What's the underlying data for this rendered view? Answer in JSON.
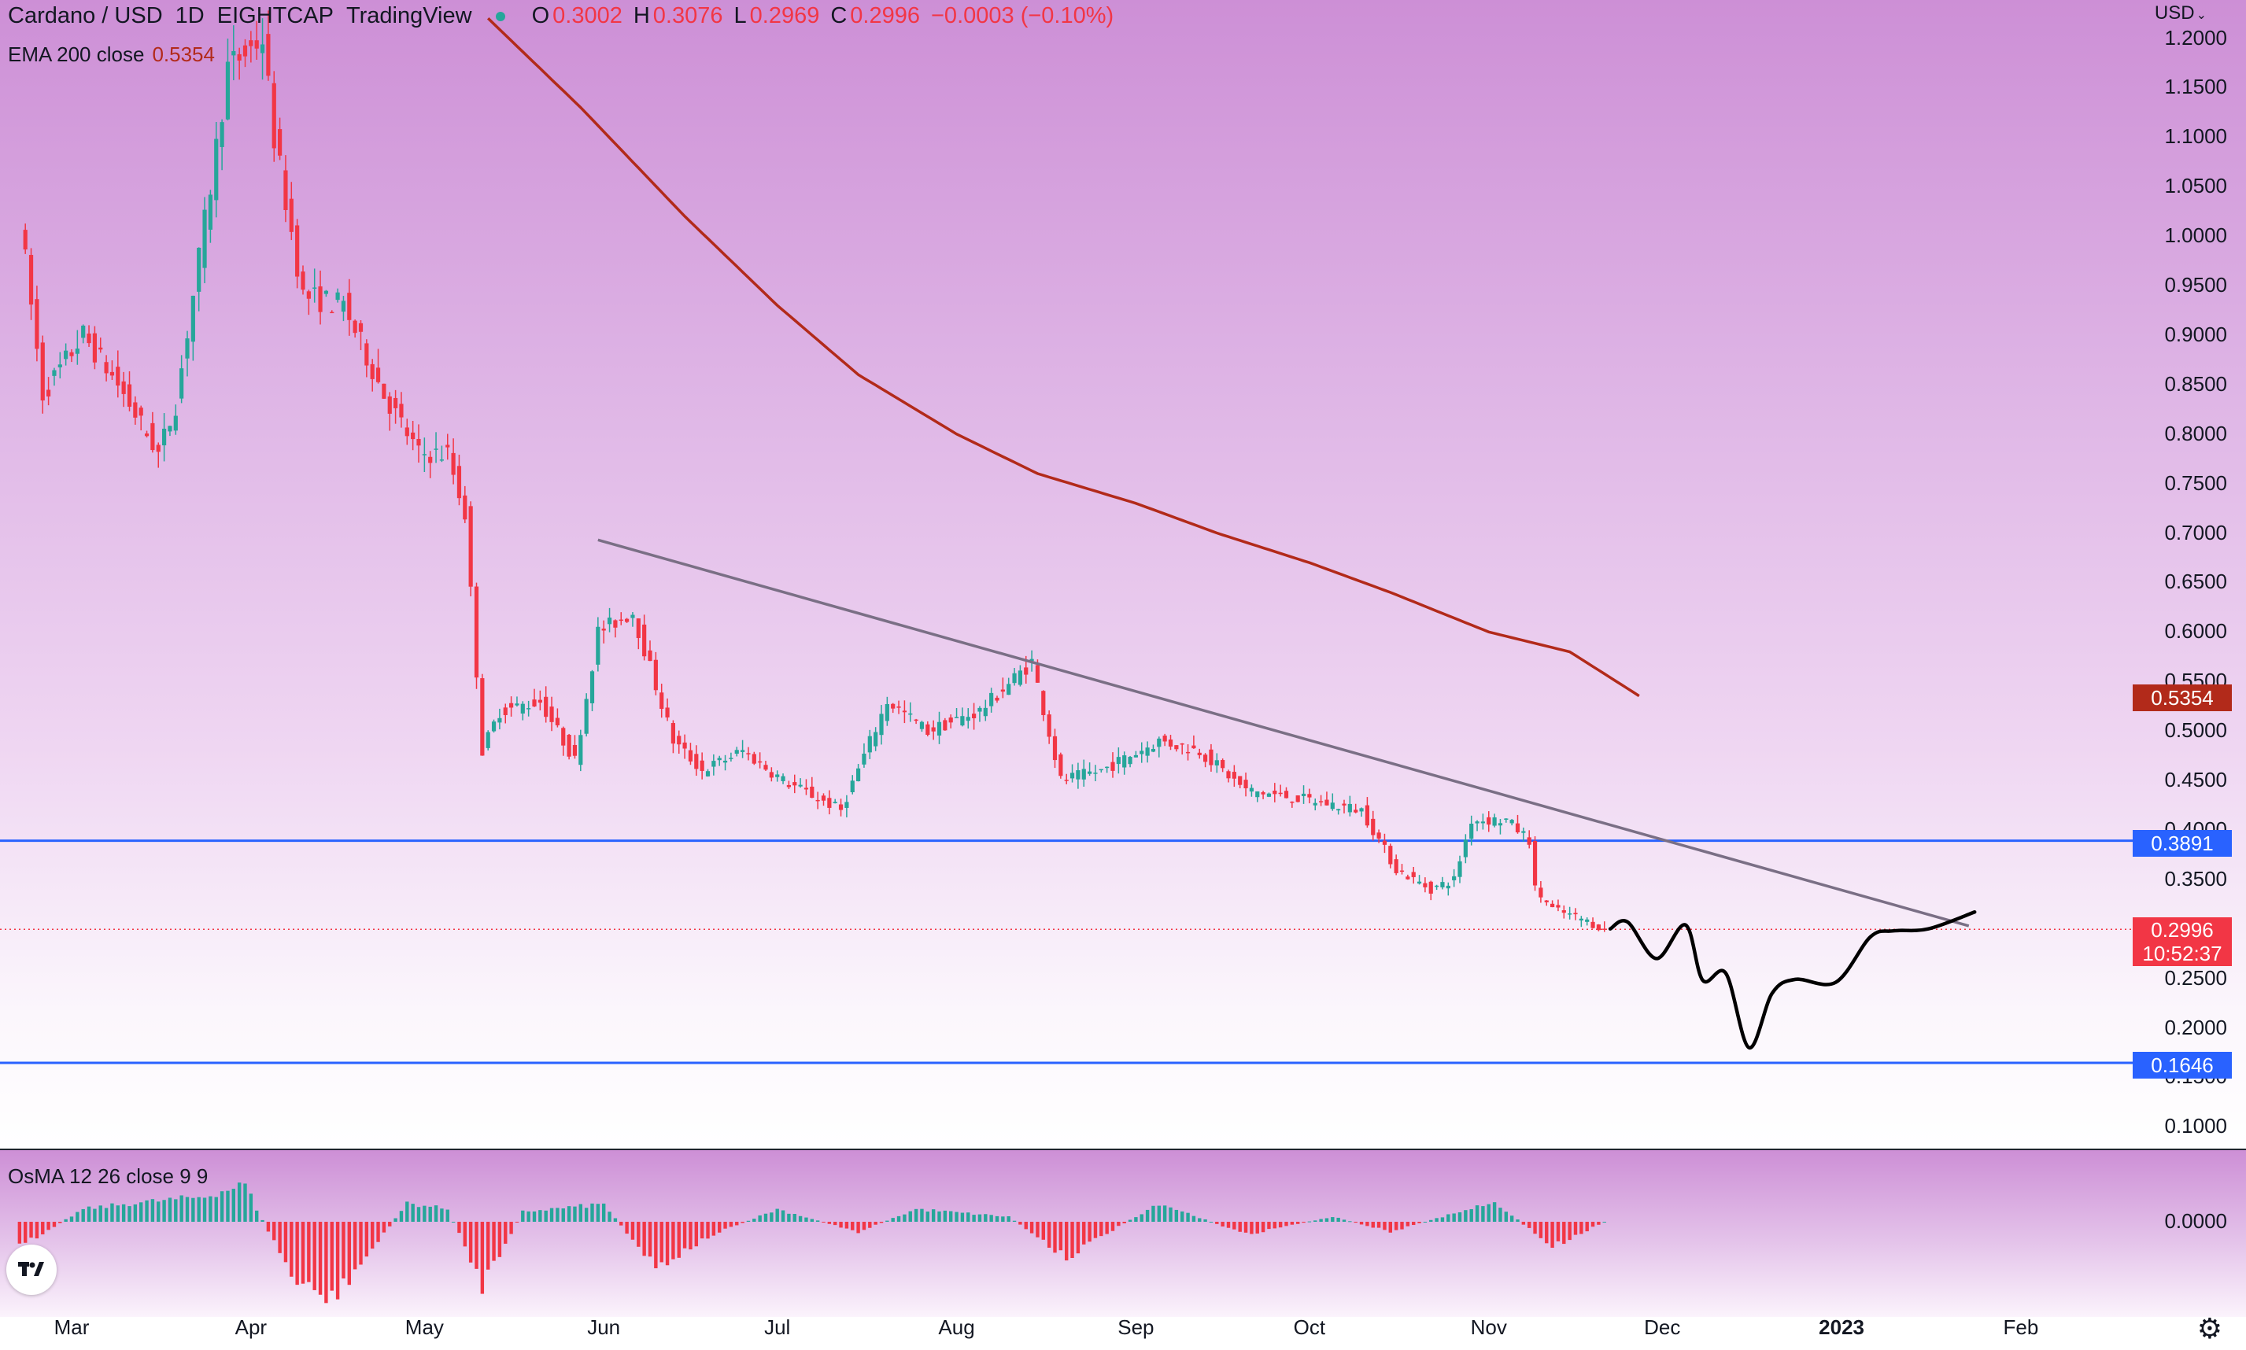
{
  "header": {
    "symbol": "Cardano / USD",
    "interval": "1D",
    "exchange": "EIGHTCAP",
    "source": "TradingView",
    "open_key": "O",
    "open": "0.3002",
    "high_key": "H",
    "high": "0.3076",
    "low_key": "L",
    "low": "0.2969",
    "close_key": "C",
    "close": "0.2996",
    "change": "−0.0003 (−0.10%)",
    "ema_label": "EMA 200 close",
    "ema_value": "0.5354",
    "osma_label": "OsMA 12 26 close 9 9",
    "currency": "USD"
  },
  "badges": {
    "ema": "0.5354",
    "resistance": "0.3891",
    "current": "0.2996",
    "countdown": "10:52:37",
    "support": "0.1646",
    "osma_zero": "0.0000"
  },
  "colors": {
    "up": "#26a69a",
    "down": "#f23645",
    "ema": "#b22a1a",
    "horizontal_lines": "#2962ff",
    "trendline": "#7a6f85",
    "projection": "#000000"
  },
  "chart_data": {
    "type": "candlestick",
    "title": "Cardano / USD",
    "x_tick_labels": [
      "Mar",
      "Apr",
      "May",
      "Jun",
      "Jul",
      "Aug",
      "Sep",
      "Oct",
      "Nov",
      "Dec",
      "2023",
      "Feb"
    ],
    "y_tick_labels": [
      "1.2000",
      "1.1500",
      "1.1000",
      "1.0500",
      "1.0000",
      "0.9500",
      "0.9000",
      "0.8500",
      "0.8000",
      "0.7500",
      "0.7000",
      "0.6500",
      "0.6000",
      "0.5500",
      "0.5000",
      "0.4500",
      "0.4000",
      "0.3500",
      "0.3000",
      "0.2500",
      "0.2000",
      "0.1500",
      "0.1000"
    ],
    "ylim": [
      0.09,
      1.21
    ],
    "last_bar": {
      "open": 0.3002,
      "high": 0.3076,
      "low": 0.2969,
      "close": 0.2996
    },
    "price_path": [
      {
        "date": "2022-02-20",
        "price": 1.02
      },
      {
        "date": "2022-02-24",
        "price": 0.84
      },
      {
        "date": "2022-03-03",
        "price": 0.9
      },
      {
        "date": "2022-03-09",
        "price": 0.85
      },
      {
        "date": "2022-03-16",
        "price": 0.78
      },
      {
        "date": "2022-03-19",
        "price": 0.83
      },
      {
        "date": "2022-03-25",
        "price": 1.05
      },
      {
        "date": "2022-03-28",
        "price": 1.17
      },
      {
        "date": "2022-04-03",
        "price": 1.2
      },
      {
        "date": "2022-04-05",
        "price": 1.1
      },
      {
        "date": "2022-04-10",
        "price": 0.94
      },
      {
        "date": "2022-04-17",
        "price": 0.93
      },
      {
        "date": "2022-04-24",
        "price": 0.84
      },
      {
        "date": "2022-04-30",
        "price": 0.78
      },
      {
        "date": "2022-05-05",
        "price": 0.78
      },
      {
        "date": "2022-05-08",
        "price": 0.72
      },
      {
        "date": "2022-05-11",
        "price": 0.48
      },
      {
        "date": "2022-05-14",
        "price": 0.52
      },
      {
        "date": "2022-05-21",
        "price": 0.53
      },
      {
        "date": "2022-05-27",
        "price": 0.47
      },
      {
        "date": "2022-05-31",
        "price": 0.6
      },
      {
        "date": "2022-06-06",
        "price": 0.62
      },
      {
        "date": "2022-06-13",
        "price": 0.49
      },
      {
        "date": "2022-06-18",
        "price": 0.46
      },
      {
        "date": "2022-06-25",
        "price": 0.48
      },
      {
        "date": "2022-07-02",
        "price": 0.45
      },
      {
        "date": "2022-07-12",
        "price": 0.42
      },
      {
        "date": "2022-07-20",
        "price": 0.53
      },
      {
        "date": "2022-07-27",
        "price": 0.5
      },
      {
        "date": "2022-08-05",
        "price": 0.52
      },
      {
        "date": "2022-08-14",
        "price": 0.57
      },
      {
        "date": "2022-08-19",
        "price": 0.45
      },
      {
        "date": "2022-08-26",
        "price": 0.46
      },
      {
        "date": "2022-09-05",
        "price": 0.49
      },
      {
        "date": "2022-09-12",
        "price": 0.48
      },
      {
        "date": "2022-09-20",
        "price": 0.44
      },
      {
        "date": "2022-10-01",
        "price": 0.43
      },
      {
        "date": "2022-10-10",
        "price": 0.42
      },
      {
        "date": "2022-10-16",
        "price": 0.36
      },
      {
        "date": "2022-10-22",
        "price": 0.34
      },
      {
        "date": "2022-10-26",
        "price": 0.35
      },
      {
        "date": "2022-10-29",
        "price": 0.41
      },
      {
        "date": "2022-11-04",
        "price": 0.41
      },
      {
        "date": "2022-11-08",
        "price": 0.39
      },
      {
        "date": "2022-11-09",
        "price": 0.34
      },
      {
        "date": "2022-11-12",
        "price": 0.32
      },
      {
        "date": "2022-11-17",
        "price": 0.31
      },
      {
        "date": "2022-11-21",
        "price": 0.2996
      }
    ],
    "ema200": [
      {
        "date": "2022-05-12",
        "value": 1.22
      },
      {
        "date": "2022-05-28",
        "value": 1.13
      },
      {
        "date": "2022-06-15",
        "value": 1.02
      },
      {
        "date": "2022-07-01",
        "value": 0.93
      },
      {
        "date": "2022-07-15",
        "value": 0.86
      },
      {
        "date": "2022-08-01",
        "value": 0.8
      },
      {
        "date": "2022-08-15",
        "value": 0.76
      },
      {
        "date": "2022-09-01",
        "value": 0.73
      },
      {
        "date": "2022-09-15",
        "value": 0.7
      },
      {
        "date": "2022-10-01",
        "value": 0.67
      },
      {
        "date": "2022-10-15",
        "value": 0.64
      },
      {
        "date": "2022-11-01",
        "value": 0.6
      },
      {
        "date": "2022-11-15",
        "value": 0.58
      },
      {
        "date": "2022-11-27",
        "value": 0.5354
      }
    ],
    "horizontal_levels": [
      0.3891,
      0.1646
    ],
    "current_price_line": 0.2996,
    "trendline": [
      {
        "date": "2022-05-31",
        "price": 0.693
      },
      {
        "date": "2023-01-23",
        "price": 0.303
      }
    ],
    "projection_path": [
      {
        "date": "2022-11-22",
        "price": 0.3
      },
      {
        "date": "2022-11-25",
        "price": 0.307
      },
      {
        "date": "2022-11-30",
        "price": 0.27
      },
      {
        "date": "2022-12-05",
        "price": 0.304
      },
      {
        "date": "2022-12-08",
        "price": 0.248
      },
      {
        "date": "2022-12-12",
        "price": 0.255
      },
      {
        "date": "2022-12-16",
        "price": 0.18
      },
      {
        "date": "2022-12-20",
        "price": 0.235
      },
      {
        "date": "2022-12-24",
        "price": 0.249
      },
      {
        "date": "2022-12-31",
        "price": 0.246
      },
      {
        "date": "2023-01-06",
        "price": 0.292
      },
      {
        "date": "2023-01-10",
        "price": 0.298
      },
      {
        "date": "2023-01-16",
        "price": 0.3
      },
      {
        "date": "2023-01-24",
        "price": 0.317
      }
    ],
    "osma": [
      {
        "date": "2022-02-20",
        "value": -0.02
      },
      {
        "date": "2022-03-03",
        "value": 0.01
      },
      {
        "date": "2022-03-12",
        "value": 0.015
      },
      {
        "date": "2022-03-24",
        "value": 0.02
      },
      {
        "date": "2022-03-31",
        "value": 0.03
      },
      {
        "date": "2022-04-02",
        "value": 0.01
      },
      {
        "date": "2022-04-09",
        "value": -0.05
      },
      {
        "date": "2022-04-15",
        "value": -0.062
      },
      {
        "date": "2022-04-24",
        "value": -0.01
      },
      {
        "date": "2022-04-28",
        "value": 0.015
      },
      {
        "date": "2022-05-05",
        "value": 0.01
      },
      {
        "date": "2022-05-11",
        "value": -0.05
      },
      {
        "date": "2022-05-18",
        "value": 0.008
      },
      {
        "date": "2022-06-01",
        "value": 0.014
      },
      {
        "date": "2022-06-10",
        "value": -0.036
      },
      {
        "date": "2022-06-20",
        "value": -0.01
      },
      {
        "date": "2022-07-01",
        "value": 0.01
      },
      {
        "date": "2022-07-15",
        "value": -0.008
      },
      {
        "date": "2022-07-25",
        "value": 0.01
      },
      {
        "date": "2022-08-10",
        "value": 0.004
      },
      {
        "date": "2022-08-20",
        "value": -0.028
      },
      {
        "date": "2022-09-05",
        "value": 0.015
      },
      {
        "date": "2022-09-20",
        "value": -0.01
      },
      {
        "date": "2022-10-05",
        "value": 0.004
      },
      {
        "date": "2022-10-15",
        "value": -0.008
      },
      {
        "date": "2022-11-02",
        "value": 0.016
      },
      {
        "date": "2022-11-12",
        "value": -0.02
      },
      {
        "date": "2022-11-21",
        "value": 0.0
      }
    ]
  }
}
